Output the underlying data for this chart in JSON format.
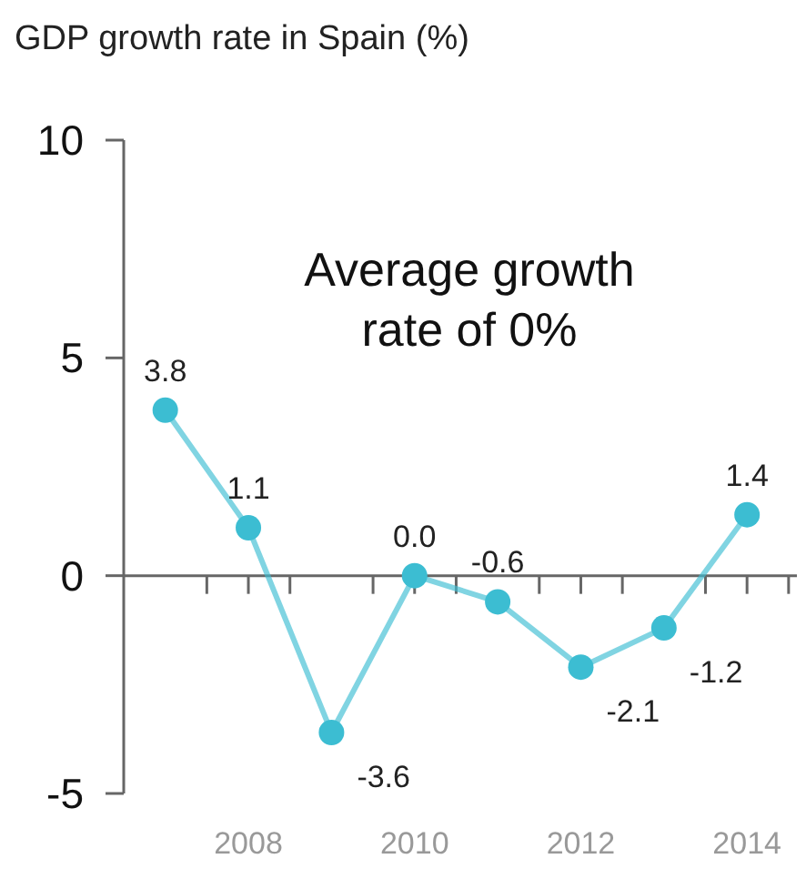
{
  "chart_data": {
    "type": "line",
    "title": "GDP growth rate in Spain (%)",
    "x": [
      2007,
      2008,
      2009,
      2010,
      2011,
      2012,
      2013,
      2014
    ],
    "series": [
      {
        "color": "#3cbdd2",
        "values": [
          3.8,
          1.1,
          -3.6,
          0.0,
          -0.6,
          -2.1,
          -1.2,
          1.4
        ],
        "value_labels": [
          "3.8",
          "1.1",
          "-3.6",
          "0.0",
          "-0.6",
          "-2.1",
          "-1.2",
          "1.4"
        ]
      }
    ],
    "xlim": [
      2006.5,
      2014.6
    ],
    "xticks": [
      {
        "value": 2007.5,
        "label": null
      },
      2008,
      {
        "value": 2008.5,
        "label": null
      },
      {
        "value": 2009.5,
        "label": null
      },
      2010,
      {
        "value": 2010.5,
        "label": null
      },
      {
        "value": 2011.5,
        "label": null
      },
      2012,
      {
        "value": 2012.5,
        "label": null
      },
      {
        "value": 2013.5,
        "label": null
      },
      2014,
      {
        "value": 2014.5,
        "label": null
      }
    ],
    "ylim": [
      -5,
      10
    ],
    "yticks": [
      -5,
      0,
      5,
      10
    ],
    "marker": "circle",
    "annotations": [
      "Average growth rate of 0%"
    ]
  }
}
